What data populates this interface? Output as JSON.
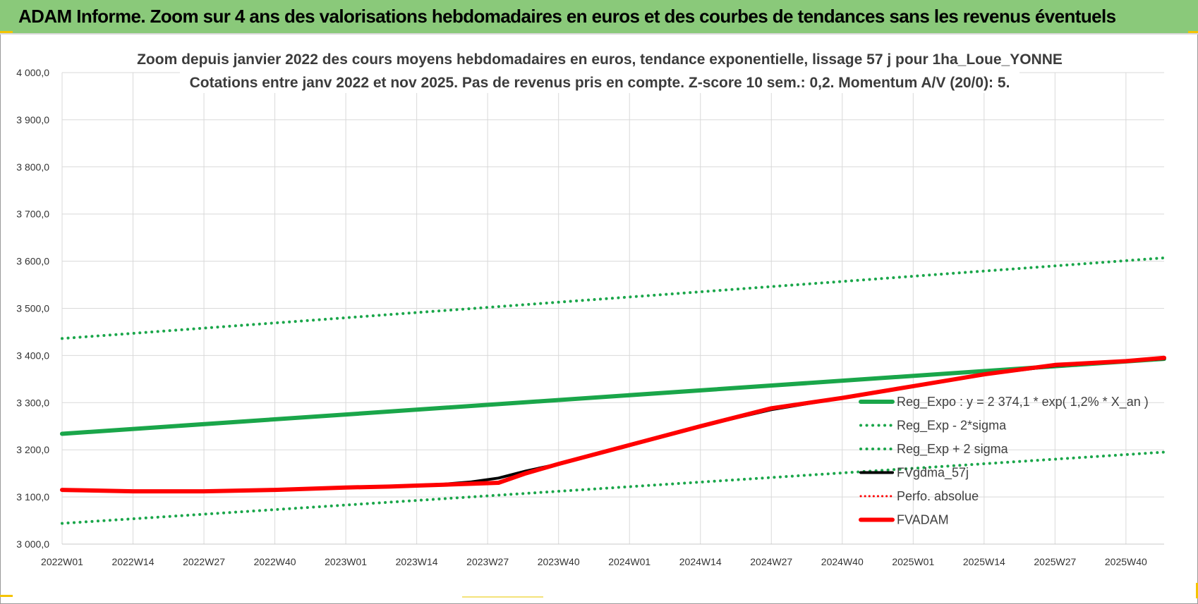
{
  "header": {
    "banner": "ADAM Informe. Zoom sur 4 ans des valorisations hebdomadaires en euros et des courbes de tendances sans les revenus éventuels"
  },
  "colors": {
    "banner_bg": "#8ac97a",
    "green": "#1aa64a",
    "black": "#000000",
    "red": "#ff0000",
    "grid": "#d9d9d9"
  },
  "chart_data": {
    "type": "line",
    "title": "Zoom depuis janvier 2022 des cours moyens hebdomadaires en euros, tendance exponentielle, lissage 57 j pour 1ha_Loue_YONNE",
    "subtitle": "Cotations entre janv 2022 et nov 2025. Pas de revenus pris en compte. Z-score 10 sem.: 0,2. Momentum A/V (20/0): 5.",
    "x_ticks": [
      "2022W01",
      "2022W14",
      "2022W27",
      "2022W40",
      "2023W01",
      "2023W14",
      "2023W27",
      "2023W40",
      "2024W01",
      "2024W14",
      "2024W27",
      "2024W40",
      "2025W01",
      "2025W14",
      "2025W27",
      "2025W40"
    ],
    "x_range": [
      0,
      202
    ],
    "y_ticks": [
      "3 000,0",
      "3 100,0",
      "3 200,0",
      "3 300,0",
      "3 400,0",
      "3 500,0",
      "3 600,0",
      "3 700,0",
      "3 800,0",
      "3 900,0",
      "4 000,0"
    ],
    "ylim": [
      3000,
      4000
    ],
    "grid": true,
    "legend_position": "right",
    "series": [
      {
        "name": "Reg_Expo : y = 2 374,1 * exp( 1,2% *  X_an )",
        "style": "solid-thick",
        "color": "#1aa64a",
        "x": [
          0,
          202
        ],
        "y": [
          3234,
          3393
        ]
      },
      {
        "name": "Reg_Exp - 2*sigma",
        "style": "dotted",
        "color": "#1aa64a",
        "x": [
          0,
          202
        ],
        "y": [
          3044,
          3195
        ]
      },
      {
        "name": "Reg_Exp + 2 sigma",
        "style": "dotted",
        "color": "#1aa64a",
        "x": [
          0,
          202
        ],
        "y": [
          3436,
          3607
        ]
      },
      {
        "name": "FVgdma_57j",
        "style": "solid",
        "color": "#000000",
        "x": [
          0,
          13,
          26,
          39,
          52,
          60,
          65,
          70,
          75,
          80,
          85,
          91,
          104,
          117,
          130,
          143,
          156,
          169,
          182,
          195,
          202
        ],
        "y": [
          3115,
          3112,
          3112,
          3115,
          3120,
          3123,
          3125,
          3127,
          3132,
          3140,
          3155,
          3170,
          3210,
          3250,
          3285,
          3310,
          3335,
          3360,
          3378,
          3388,
          3393
        ]
      },
      {
        "name": "Perfo. absolue",
        "style": "dotted-thin",
        "color": "#ff0000",
        "x": [],
        "y": []
      },
      {
        "name": "FVADAM",
        "style": "solid-thick",
        "color": "#ff0000",
        "x": [
          0,
          13,
          26,
          39,
          52,
          60,
          65,
          70,
          75,
          80,
          85,
          91,
          104,
          117,
          130,
          143,
          156,
          169,
          182,
          195,
          202
        ],
        "y": [
          3115,
          3112,
          3112,
          3115,
          3120,
          3122,
          3124,
          3126,
          3128,
          3130,
          3150,
          3170,
          3210,
          3250,
          3288,
          3310,
          3335,
          3360,
          3380,
          3388,
          3395
        ]
      }
    ]
  }
}
